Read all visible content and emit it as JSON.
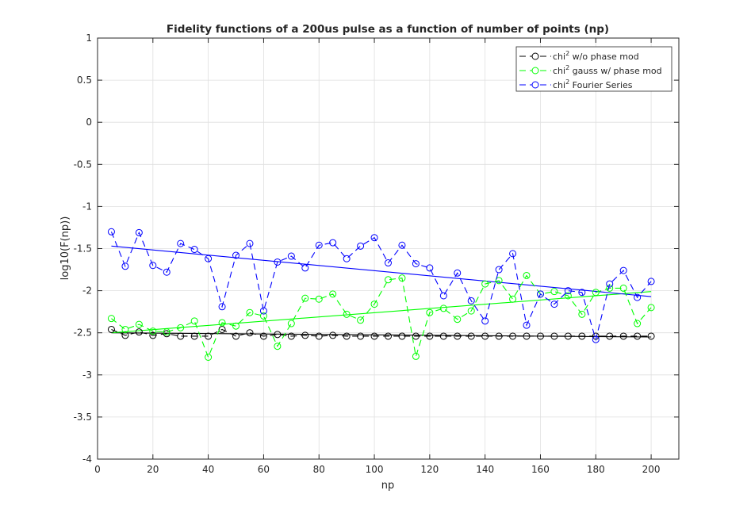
{
  "chart_data": {
    "type": "line",
    "title": "Fidelity functions of a 200us pulse as a function of number of points (np)",
    "xlabel": "np",
    "ylabel": "log10(F(np))",
    "xlim": [
      0,
      210
    ],
    "ylim": [
      -4,
      1
    ],
    "xticks": [
      0,
      20,
      40,
      60,
      80,
      100,
      120,
      140,
      160,
      180,
      200
    ],
    "yticks": [
      1,
      0.5,
      0,
      -0.5,
      -1,
      -1.5,
      -2,
      -2.5,
      -3,
      -3.5,
      -4
    ],
    "xtick_labels": [
      "0",
      "20",
      "40",
      "60",
      "80",
      "100",
      "120",
      "140",
      "160",
      "180",
      "200"
    ],
    "ytick_labels": [
      "1",
      "0.5",
      "0",
      "-0.5",
      "-1",
      "-1.5",
      "-2",
      "-2.5",
      "-3",
      "-3.5",
      "-4"
    ],
    "grid": true,
    "legend_position": "top-right",
    "x": [
      5,
      10,
      15,
      20,
      25,
      30,
      35,
      40,
      45,
      50,
      55,
      60,
      65,
      70,
      75,
      80,
      85,
      90,
      95,
      100,
      105,
      110,
      115,
      120,
      125,
      130,
      135,
      140,
      145,
      150,
      155,
      160,
      165,
      170,
      175,
      180,
      185,
      190,
      195,
      200
    ],
    "series": [
      {
        "legend_label": "chi",
        "legend_sup": "2",
        "legend_rest": " w/o phase mod",
        "color": "#000000",
        "style": "dashed-circles",
        "values": [
          -2.46,
          -2.53,
          -2.49,
          -2.53,
          -2.51,
          -2.54,
          -2.54,
          -2.54,
          -2.46,
          -2.54,
          -2.5,
          -2.54,
          -2.52,
          -2.54,
          -2.53,
          -2.54,
          -2.53,
          -2.54,
          -2.54,
          -2.54,
          -2.54,
          -2.54,
          -2.54,
          -2.54,
          -2.54,
          -2.54,
          -2.54,
          -2.54,
          -2.54,
          -2.54,
          -2.54,
          -2.54,
          -2.54,
          -2.54,
          -2.54,
          -2.54,
          -2.54,
          -2.54,
          -2.54,
          -2.54
        ]
      },
      {
        "legend_label": "chi",
        "legend_sup": "2",
        "legend_rest": " gauss w/ phase mod",
        "color": "#00ff00",
        "style": "dashed-circles",
        "values": [
          -2.33,
          -2.46,
          -2.4,
          -2.48,
          -2.49,
          -2.44,
          -2.36,
          -2.79,
          -2.38,
          -2.42,
          -2.26,
          -2.3,
          -2.66,
          -2.39,
          -2.09,
          -2.1,
          -2.04,
          -2.28,
          -2.35,
          -2.16,
          -1.87,
          -1.85,
          -2.78,
          -2.26,
          -2.21,
          -2.34,
          -2.24,
          -1.92,
          -1.88,
          -2.1,
          -1.82,
          -2.04,
          -2.01,
          -2.06,
          -2.28,
          -2.02,
          -1.97,
          -1.97,
          -2.39,
          -2.2
        ]
      },
      {
        "legend_label": "chi",
        "legend_sup": "2",
        "legend_rest": " Fourier Series",
        "color": "#0000ff",
        "style": "dashed-circles",
        "values": [
          -1.3,
          -1.71,
          -1.31,
          -1.7,
          -1.78,
          -1.44,
          -1.51,
          -1.62,
          -2.19,
          -1.58,
          -1.44,
          -2.24,
          -1.66,
          -1.59,
          -1.73,
          -1.46,
          -1.43,
          -1.62,
          -1.47,
          -1.37,
          -1.67,
          -1.46,
          -1.68,
          -1.73,
          -2.06,
          -1.79,
          -2.12,
          -2.36,
          -1.75,
          -1.56,
          -2.41,
          -2.04,
          -2.16,
          -2.0,
          -2.02,
          -2.58,
          -1.92,
          -1.76,
          -2.08,
          -1.89
        ]
      }
    ],
    "trend_lines": [
      {
        "color": "#000000",
        "x": [
          5,
          200
        ],
        "values": [
          -2.5,
          -2.55
        ]
      },
      {
        "color": "#00ff00",
        "x": [
          5,
          200
        ],
        "values": [
          -2.5,
          -2.01
        ]
      },
      {
        "color": "#0000ff",
        "x": [
          5,
          200
        ],
        "values": [
          -1.47,
          -2.07
        ]
      }
    ]
  }
}
